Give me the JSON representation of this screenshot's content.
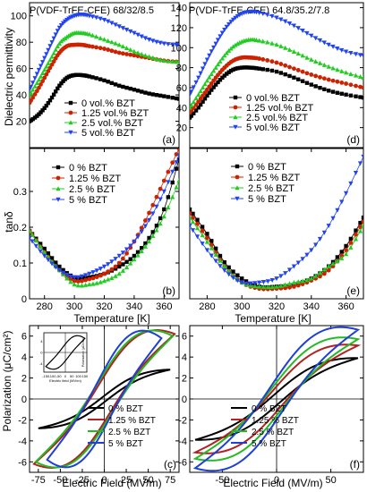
{
  "figure": {
    "colors": {
      "black": "#000000",
      "red": "#cc2200",
      "green": "#22cc22",
      "blue": "#2244ee",
      "loop_black": "#000000",
      "loop_red": "#b22222",
      "loop_green": "#22bb22",
      "loop_blue": "#1f3fd6"
    },
    "labels": {
      "ylabel_top": "Dielectric permittivity",
      "ylabel_mid": "tanδ",
      "ylabel_bot": "Polarization (μC/cm²)",
      "xlabel_temp": "Temperature [K]",
      "xlabel_field": "Electric Field (MV/m)",
      "inset_xlabel": "Electric field (MV/m)",
      "inset_ylabel": "Polarization (μC/cm²)"
    },
    "panels": {
      "a": {
        "title": "P(VDF-TrFE-CFE) 68/32/8.5",
        "tag": "(a)"
      },
      "b": {
        "tag": "(b)"
      },
      "c": {
        "tag": "(c)"
      },
      "d": {
        "title": "P(VDF-TrFE-CFE) 64.8/35.2/7.8",
        "tag": "(d)"
      },
      "e": {
        "tag": "(e)"
      },
      "f": {
        "tag": "(f)"
      }
    },
    "legends": {
      "vol": [
        "0 vol.% BZT",
        "1.25 vol.% BZT",
        "2.5 vol.% BZT",
        "5 vol.% BZT"
      ],
      "pct": [
        "0 % BZT",
        "1.25 % BZT",
        "2.5 % BZT",
        "5 % BZT"
      ],
      "pct_loop": [
        "0 % BZT",
        "1.25 % BZT",
        "2.5 % BZT",
        "5 % BZT"
      ]
    }
  },
  "chart_data": [
    {
      "panel": "a",
      "type": "line",
      "xlabel": "",
      "ylabel": "Dielectric permittivity",
      "xlim": [
        270,
        370
      ],
      "ylim": [
        0,
        110
      ],
      "xticks": [],
      "yticks": [
        20,
        40,
        60,
        80,
        100
      ],
      "series": [
        {
          "name": "0 vol.% BZT",
          "color": "black",
          "marker": "square",
          "x": [
            270,
            275,
            280,
            285,
            290,
            295,
            300,
            305,
            310,
            320,
            330,
            340,
            350,
            360,
            370
          ],
          "y": [
            20,
            24,
            30,
            38,
            47,
            53,
            55,
            55,
            54,
            51,
            47,
            44,
            41,
            39,
            37
          ]
        },
        {
          "name": "1.25 vol.% BZT",
          "color": "red",
          "marker": "circle",
          "x": [
            270,
            275,
            280,
            285,
            290,
            295,
            300,
            305,
            310,
            320,
            330,
            340,
            350,
            360,
            370
          ],
          "y": [
            34,
            43,
            53,
            63,
            72,
            77,
            78,
            78,
            77,
            75,
            72,
            70,
            68,
            66,
            65
          ]
        },
        {
          "name": "2.5 vol.% BZT",
          "color": "green",
          "marker": "triangle-up",
          "x": [
            270,
            275,
            280,
            285,
            290,
            295,
            300,
            305,
            310,
            320,
            330,
            340,
            350,
            360,
            370
          ],
          "y": [
            40,
            49,
            59,
            69,
            79,
            84,
            87,
            87,
            86,
            82,
            78,
            73,
            69,
            66,
            65
          ]
        },
        {
          "name": "5 vol.% BZT",
          "color": "blue",
          "marker": "triangle-down",
          "x": [
            270,
            275,
            280,
            285,
            290,
            295,
            300,
            305,
            310,
            320,
            330,
            340,
            350,
            360,
            370
          ],
          "y": [
            44,
            56,
            68,
            80,
            91,
            97,
            100,
            101,
            100,
            97,
            92,
            87,
            82,
            79,
            78
          ]
        }
      ]
    },
    {
      "panel": "b",
      "type": "line",
      "xlabel": "Temperature [K]",
      "ylabel": "tanδ",
      "xlim": [
        270,
        370
      ],
      "ylim": [
        0,
        0.42
      ],
      "xticks": [
        280,
        300,
        320,
        340,
        360
      ],
      "yticks": [
        0.0,
        0.1,
        0.2,
        0.3
      ],
      "series": [
        {
          "name": "0 % BZT",
          "color": "black",
          "marker": "square",
          "x": [
            270,
            280,
            290,
            300,
            310,
            320,
            330,
            340,
            350,
            360,
            370
          ],
          "y": [
            0.19,
            0.14,
            0.09,
            0.06,
            0.06,
            0.07,
            0.09,
            0.12,
            0.17,
            0.25,
            0.39
          ]
        },
        {
          "name": "1.25 % BZT",
          "color": "red",
          "marker": "circle",
          "x": [
            270,
            280,
            290,
            300,
            310,
            320,
            330,
            340,
            350,
            360,
            370
          ],
          "y": [
            0.19,
            0.13,
            0.08,
            0.05,
            0.055,
            0.07,
            0.1,
            0.16,
            0.24,
            0.33,
            0.42
          ]
        },
        {
          "name": "2.5 % BZT",
          "color": "green",
          "marker": "triangle-up",
          "x": [
            270,
            280,
            290,
            300,
            310,
            320,
            330,
            340,
            350,
            360,
            370
          ],
          "y": [
            0.19,
            0.13,
            0.08,
            0.04,
            0.04,
            0.05,
            0.07,
            0.11,
            0.16,
            0.23,
            0.33
          ]
        },
        {
          "name": "5 % BZT",
          "color": "blue",
          "marker": "triangle-down",
          "x": [
            270,
            280,
            290,
            300,
            310,
            320,
            330,
            340,
            350,
            360,
            370
          ],
          "y": [
            0.17,
            0.12,
            0.08,
            0.06,
            0.07,
            0.09,
            0.12,
            0.16,
            0.22,
            0.3,
            0.4
          ]
        }
      ]
    },
    {
      "panel": "c",
      "type": "line",
      "xlabel": "Electric Field (MV/m)",
      "ylabel": "Polarization (μC/cm²)",
      "xlim": [
        -85,
        85
      ],
      "ylim": [
        -7,
        7
      ],
      "xticks": [
        -75,
        -50,
        -25,
        0,
        25,
        50,
        75
      ],
      "yticks": [
        -6,
        -4,
        -2,
        0,
        2,
        4,
        6
      ],
      "series": [
        {
          "name": "0 % BZT",
          "color": "loop_black",
          "emax": 75,
          "pmax": 2.8,
          "pr": 0.3
        },
        {
          "name": "1.25 % BZT",
          "color": "loop_red",
          "emax": 80,
          "pmax": 6.2,
          "pr": 2.2
        },
        {
          "name": "2.5 % BZT",
          "color": "loop_green",
          "emax": 78,
          "pmax": 6.0,
          "pr": 2.5
        },
        {
          "name": "5 % BZT",
          "color": "loop_blue",
          "emax": 65,
          "pmax": 5.8,
          "pr": 2.8
        }
      ],
      "inset": {
        "xticks": [
          -150,
          -100,
          -50,
          0,
          50,
          100,
          150
        ],
        "yticks": [
          -4,
          0,
          4
        ],
        "emax": 150,
        "pmax": 5,
        "pr": 3
      }
    },
    {
      "panel": "d",
      "type": "line",
      "xlabel": "",
      "ylabel": "",
      "xlim": [
        270,
        370
      ],
      "ylim": [
        0,
        145
      ],
      "xticks": [],
      "yticks": [
        20,
        40,
        60,
        80,
        100,
        120,
        140
      ],
      "series": [
        {
          "name": "0 vol.% BZT",
          "color": "black",
          "marker": "square",
          "x": [
            270,
            275,
            280,
            285,
            290,
            295,
            300,
            305,
            310,
            320,
            330,
            340,
            350,
            360,
            370
          ],
          "y": [
            30,
            40,
            52,
            63,
            72,
            78,
            80,
            80,
            79,
            76,
            70,
            63,
            57,
            53,
            50
          ]
        },
        {
          "name": "1.25 vol.% BZT",
          "color": "red",
          "marker": "circle",
          "x": [
            270,
            275,
            280,
            285,
            290,
            295,
            300,
            305,
            310,
            320,
            330,
            340,
            350,
            360,
            370
          ],
          "y": [
            35,
            46,
            58,
            70,
            80,
            87,
            90,
            90,
            89,
            85,
            79,
            73,
            68,
            64,
            60
          ]
        },
        {
          "name": "2.5 vol.% BZT",
          "color": "green",
          "marker": "triangle-up",
          "x": [
            270,
            275,
            280,
            285,
            290,
            295,
            300,
            305,
            310,
            320,
            330,
            340,
            350,
            360,
            370
          ],
          "y": [
            40,
            53,
            67,
            80,
            92,
            101,
            106,
            108,
            107,
            103,
            96,
            88,
            81,
            75,
            70
          ]
        },
        {
          "name": "5 vol.% BZT",
          "color": "blue",
          "marker": "triangle-down",
          "x": [
            270,
            275,
            280,
            285,
            290,
            295,
            300,
            305,
            310,
            320,
            330,
            340,
            350,
            360,
            370
          ],
          "y": [
            53,
            70,
            88,
            104,
            118,
            128,
            134,
            136,
            135,
            130,
            122,
            112,
            103,
            96,
            92
          ]
        }
      ]
    },
    {
      "panel": "e",
      "type": "line",
      "xlabel": "Temperature [K]",
      "ylabel": "",
      "xlim": [
        270,
        370
      ],
      "ylim": [
        0,
        0.37
      ],
      "xticks": [
        280,
        300,
        320,
        340,
        360
      ],
      "yticks": [],
      "series": [
        {
          "name": "0 % BZT",
          "color": "black",
          "marker": "square",
          "x": [
            270,
            280,
            290,
            300,
            310,
            320,
            330,
            340,
            350,
            360,
            370
          ],
          "y": [
            0.22,
            0.16,
            0.09,
            0.05,
            0.03,
            0.03,
            0.035,
            0.05,
            0.08,
            0.13,
            0.2
          ]
        },
        {
          "name": "1.25 % BZT",
          "color": "red",
          "marker": "circle",
          "x": [
            270,
            280,
            290,
            300,
            310,
            320,
            330,
            340,
            350,
            360,
            370
          ],
          "y": [
            0.21,
            0.15,
            0.08,
            0.04,
            0.025,
            0.025,
            0.03,
            0.045,
            0.07,
            0.12,
            0.19
          ]
        },
        {
          "name": "2.5 % BZT",
          "color": "green",
          "marker": "triangle-up",
          "x": [
            270,
            280,
            290,
            300,
            310,
            320,
            330,
            340,
            350,
            360,
            370
          ],
          "y": [
            0.2,
            0.14,
            0.08,
            0.04,
            0.03,
            0.03,
            0.04,
            0.05,
            0.08,
            0.11,
            0.18
          ]
        },
        {
          "name": "5 % BZT",
          "color": "blue",
          "marker": "triangle-down",
          "x": [
            270,
            280,
            290,
            300,
            310,
            320,
            330,
            340,
            350,
            360,
            370
          ],
          "y": [
            0.18,
            0.12,
            0.07,
            0.04,
            0.04,
            0.05,
            0.08,
            0.12,
            0.18,
            0.26,
            0.35
          ]
        }
      ]
    },
    {
      "panel": "f",
      "type": "line",
      "xlabel": "Electric Field (MV/m)",
      "ylabel": "",
      "xlim": [
        -80,
        80
      ],
      "ylim": [
        -7,
        7
      ],
      "xticks": [
        -50,
        0,
        50
      ],
      "yticks": [
        -6,
        -4,
        -2,
        0,
        2,
        4,
        6
      ],
      "series": [
        {
          "name": "0 % BZT",
          "color": "loop_black",
          "emax": 75,
          "pmax": 3.9,
          "pr": 0.6
        },
        {
          "name": "1.25 % BZT",
          "color": "loop_red",
          "emax": 75,
          "pmax": 5.1,
          "pr": 1.2
        },
        {
          "name": "2.5 % BZT",
          "color": "loop_green",
          "emax": 75,
          "pmax": 5.7,
          "pr": 1.6
        },
        {
          "name": "5 % BZT",
          "color": "loop_blue",
          "emax": 75,
          "pmax": 6.6,
          "pr": 2.0
        }
      ]
    }
  ]
}
